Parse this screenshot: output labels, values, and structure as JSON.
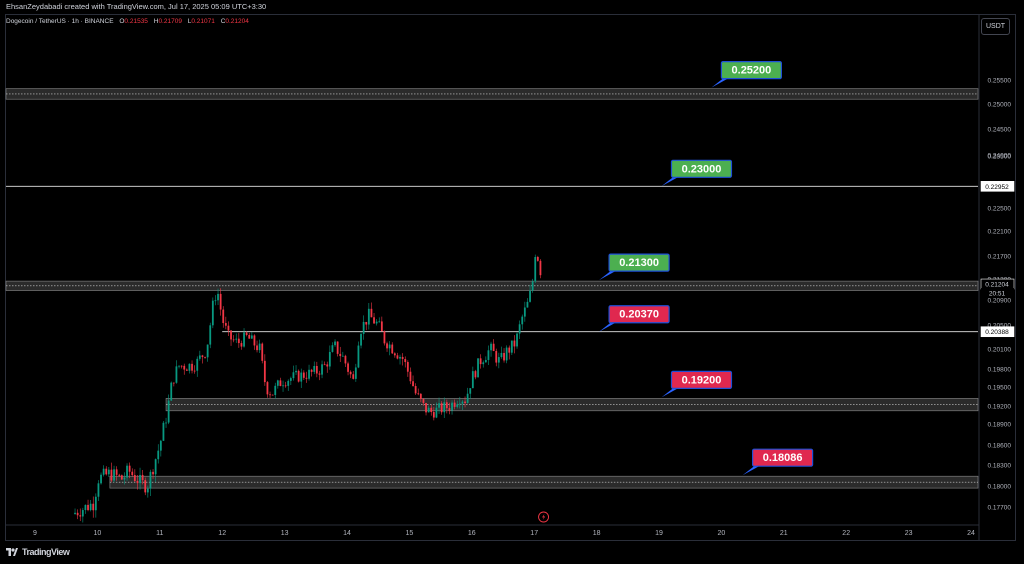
{
  "header": {
    "attribution": "EhsanZeydabadi created with TradingView.com, Jul 17, 2025 05:09 UTC+3:30"
  },
  "symbol_legend": {
    "symbol": "Dogecoin / TetherUS · 1h · BINANCE",
    "open_label": "O",
    "open": "0.21535",
    "high_label": "H",
    "high": "0.21709",
    "low_label": "L",
    "low": "0.21071",
    "close_label": "C",
    "close": "0.21204"
  },
  "currency_button": "USDT",
  "footer": {
    "brand": "TradingView",
    "logo_icon": "tradingview-logo-icon"
  },
  "colors": {
    "background": "#000000",
    "up_candle": "#089981",
    "down_candle": "#f23645",
    "zone_fill": "#3a3a3a",
    "resistance_callout": "#4caf50",
    "support_callout": "#e0284f",
    "callout_pointer": "#2962ff"
  },
  "chart_data": {
    "type": "candlestick",
    "title": "Dogecoin / TetherUS · 1h · BINANCE",
    "x_tick_labels": [
      "9",
      "10",
      "11",
      "12",
      "13",
      "14",
      "15",
      "16",
      "17",
      "18",
      "19",
      "20",
      "21",
      "22",
      "23",
      "24"
    ],
    "xlim": [
      8.5,
      24
    ],
    "y_tick_labels": [
      "0.25500",
      "0.25000",
      "0.24500",
      "0.24000",
      "0.23500",
      "0.23000",
      "0.22500",
      "0.22100",
      "0.21700",
      "0.21300",
      "0.20900",
      "0.20500",
      "0.20100",
      "0.19800",
      "0.19500",
      "0.19200",
      "0.18900",
      "0.18600",
      "0.18300",
      "0.18000",
      "0.17700"
    ],
    "y_tick_values": [
      0.255,
      0.25,
      0.245,
      0.24,
      0.235,
      0.23,
      0.225,
      0.221,
      0.217,
      0.213,
      0.209,
      0.205,
      0.201,
      0.198,
      0.195,
      0.192,
      0.189,
      0.186,
      0.183,
      0.18,
      0.177
    ],
    "ylim": [
      0.175,
      0.26
    ],
    "price_axis_labels": [
      {
        "value": 0.22952,
        "text": "0.22952"
      },
      {
        "value": 0.21204,
        "text": "0.21204"
      },
      {
        "value": 0.21204,
        "text": "20:51",
        "sub": true
      },
      {
        "value": 0.20388,
        "text": "0.20388"
      }
    ],
    "levels": [
      {
        "label": "0.25200",
        "kind": "zone",
        "low": 0.251,
        "high": 0.2532,
        "x_start": 8.5,
        "color": "resistance",
        "callout_x": 20.0
      },
      {
        "label": "0.23000",
        "kind": "line",
        "value": 0.22952,
        "x_start": 8.5,
        "color": "resistance",
        "callout_x": 19.2
      },
      {
        "label": "0.21300",
        "kind": "zone",
        "low": 0.2108,
        "high": 0.2126,
        "x_start": 8.5,
        "color": "resistance",
        "callout_x": 18.2
      },
      {
        "label": "0.20370",
        "kind": "line",
        "value": 0.20388,
        "x_start": 12.0,
        "color": "support",
        "callout_x": 18.2
      },
      {
        "label": "0.19200",
        "kind": "zone",
        "low": 0.1912,
        "high": 0.1932,
        "x_start": 11.1,
        "color": "support",
        "callout_x": 19.2
      },
      {
        "label": "0.18086",
        "kind": "zone",
        "low": 0.1797,
        "high": 0.1814,
        "x_start": 10.2,
        "color": "support",
        "callout_x": 20.5
      }
    ],
    "price_path": [
      [
        9.6,
        0.176
      ],
      [
        9.95,
        0.1776
      ],
      [
        10.0,
        0.181
      ],
      [
        10.2,
        0.1818
      ],
      [
        10.4,
        0.181
      ],
      [
        10.5,
        0.1822
      ],
      [
        10.7,
        0.1804
      ],
      [
        10.8,
        0.18
      ],
      [
        10.9,
        0.183
      ],
      [
        11.0,
        0.186
      ],
      [
        11.1,
        0.19
      ],
      [
        11.2,
        0.196
      ],
      [
        11.3,
        0.1985
      ],
      [
        11.5,
        0.1985
      ],
      [
        11.6,
        0.199
      ],
      [
        11.75,
        0.201
      ],
      [
        11.85,
        0.208
      ],
      [
        11.92,
        0.211
      ],
      [
        12.0,
        0.206
      ],
      [
        12.1,
        0.203
      ],
      [
        12.25,
        0.202
      ],
      [
        12.4,
        0.203
      ],
      [
        12.6,
        0.201
      ],
      [
        12.7,
        0.195
      ],
      [
        12.8,
        0.194
      ],
      [
        12.95,
        0.196
      ],
      [
        13.1,
        0.1965
      ],
      [
        13.3,
        0.197
      ],
      [
        13.5,
        0.1975
      ],
      [
        13.65,
        0.1985
      ],
      [
        13.8,
        0.2015
      ],
      [
        13.95,
        0.1995
      ],
      [
        14.1,
        0.196
      ],
      [
        14.2,
        0.204
      ],
      [
        14.35,
        0.2065
      ],
      [
        14.5,
        0.205
      ],
      [
        14.6,
        0.2025
      ],
      [
        14.75,
        0.201
      ],
      [
        14.9,
        0.1995
      ],
      [
        15.0,
        0.197
      ],
      [
        15.1,
        0.194
      ],
      [
        15.25,
        0.1915
      ],
      [
        15.35,
        0.191
      ],
      [
        15.5,
        0.1915
      ],
      [
        15.65,
        0.192
      ],
      [
        15.8,
        0.1935
      ],
      [
        15.9,
        0.193
      ],
      [
        16.0,
        0.1965
      ],
      [
        16.15,
        0.1995
      ],
      [
        16.3,
        0.201
      ],
      [
        16.45,
        0.199
      ],
      [
        16.55,
        0.2005
      ],
      [
        16.7,
        0.202
      ],
      [
        16.8,
        0.206
      ],
      [
        16.9,
        0.2085
      ],
      [
        16.97,
        0.212
      ],
      [
        17.02,
        0.218
      ],
      [
        17.08,
        0.216
      ],
      [
        17.13,
        0.212
      ]
    ]
  }
}
